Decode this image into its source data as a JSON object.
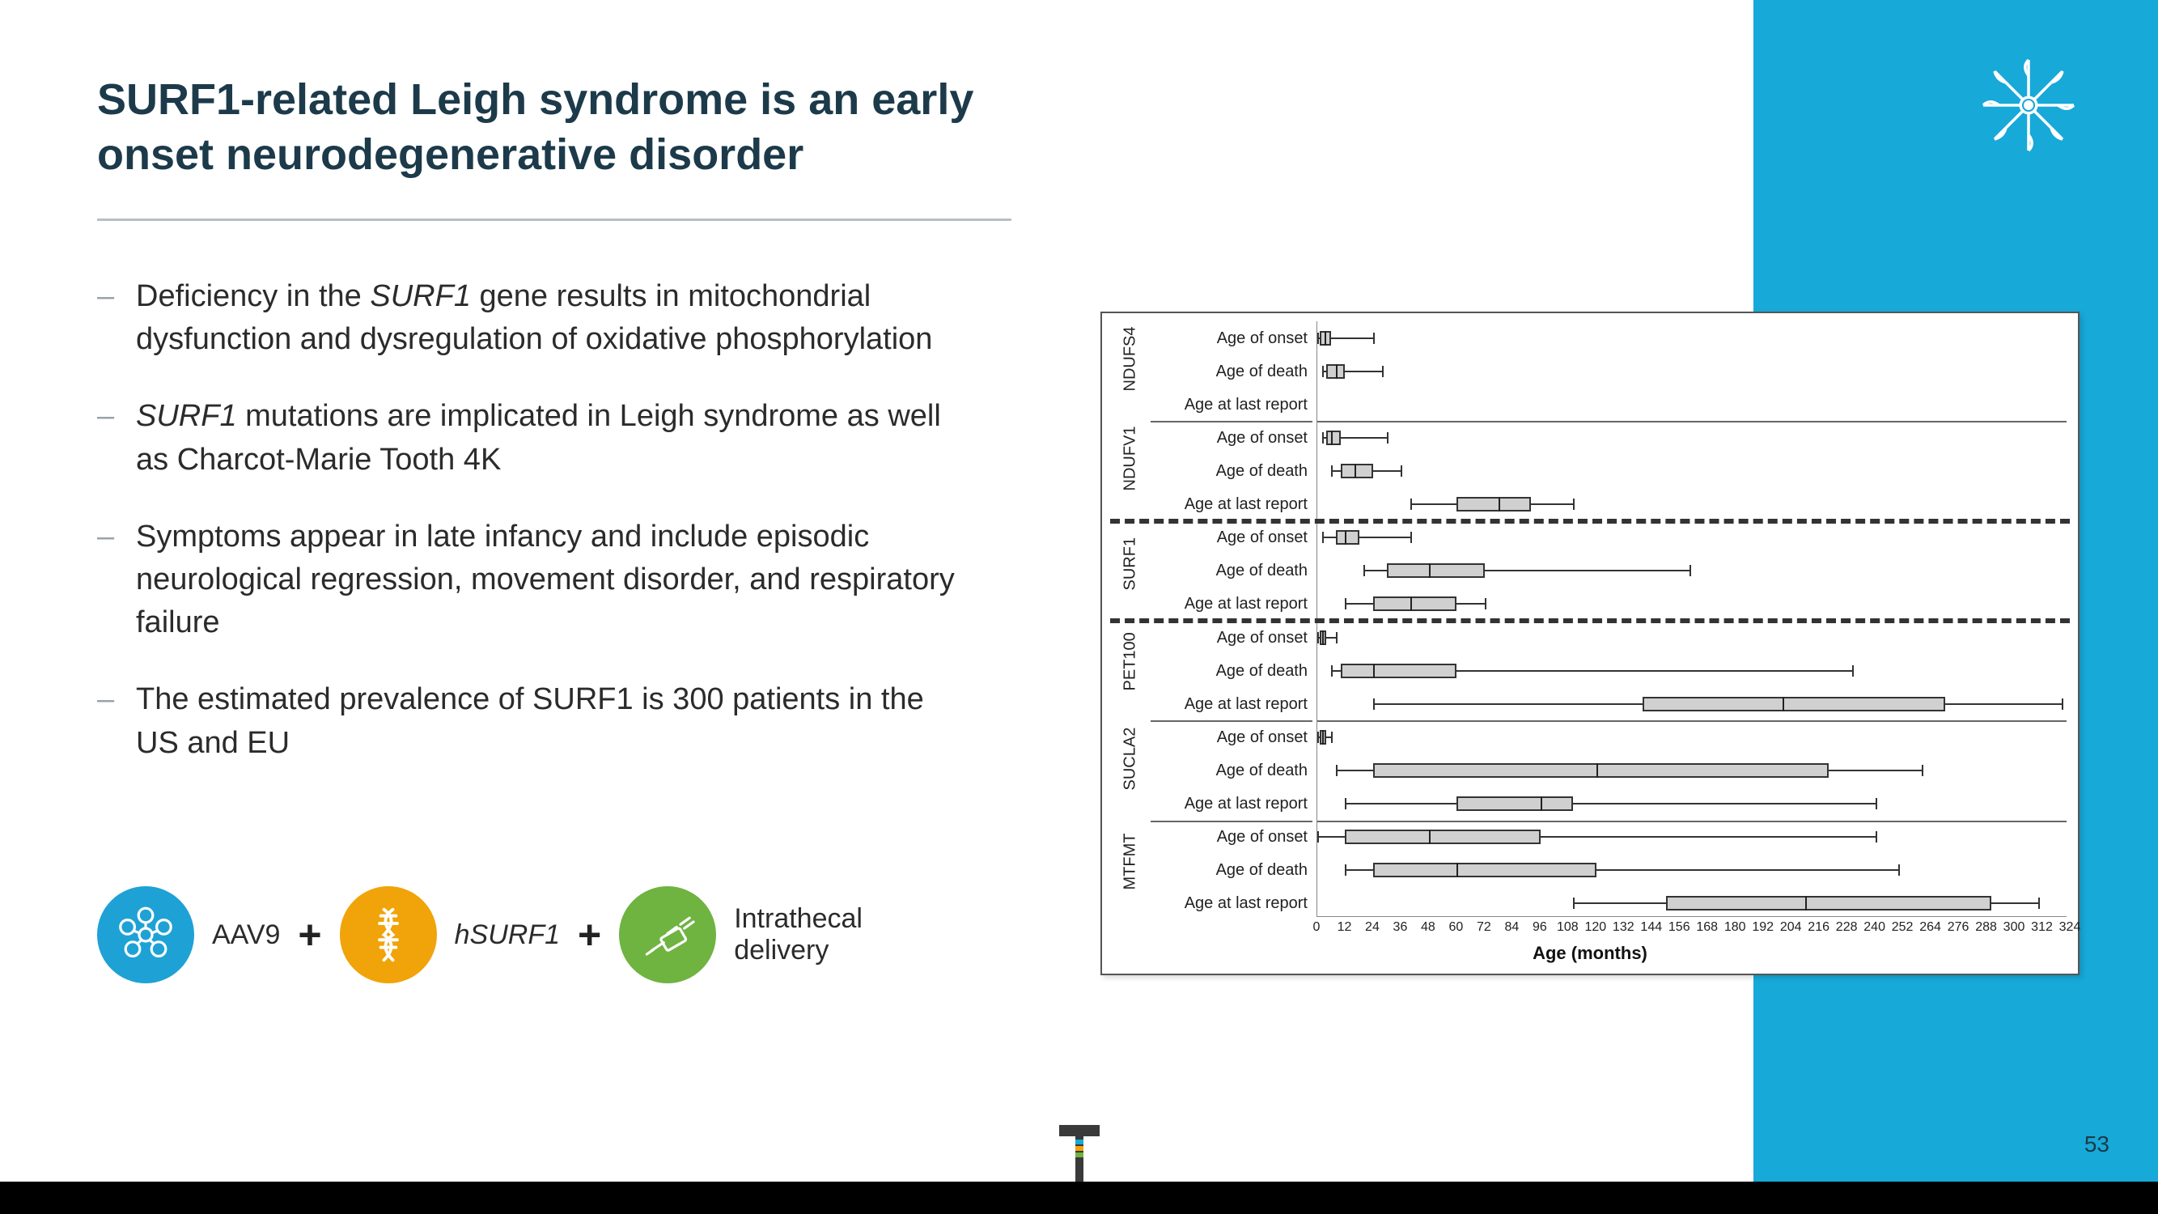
{
  "accent_color": "#17a9d8",
  "title_color": "#1c3a4a",
  "title": "SURF1-related Leigh syndrome is an early onset neurodegenerative disorder",
  "bullets": [
    {
      "pre": "Deficiency in the ",
      "em": "SURF1",
      "post": " gene results in mitochondrial dysfunction and dysregulation of oxidative phosphorylation"
    },
    {
      "pre": "",
      "em": "SURF1",
      "post": " mutations are implicated in Leigh syndrome as well as Charcot-Marie Tooth 4K"
    },
    {
      "pre": "Symptoms appear in late infancy and include episodic neurological regression, movement disorder, and respiratory failure",
      "em": "",
      "post": ""
    },
    {
      "pre": "The estimated prevalence of SURF1 is 300 patients in the US and EU",
      "em": "",
      "post": ""
    }
  ],
  "therapy": {
    "c1_color": "#1ea2d6",
    "c1_label": "AAV9",
    "c2_color": "#f0a409",
    "c2_label": "hSURF1",
    "c3_color": "#6fb341",
    "c3_line1": "Intrathecal",
    "c3_line2": "delivery",
    "plus": "+"
  },
  "chart": {
    "xlabel": "Age (months)",
    "xmin": 0,
    "xmax": 324,
    "xtick_step": 12,
    "row_labels": [
      "Age of onset",
      "Age of death",
      "Age at last report"
    ],
    "box_fill": "#d0d0d0",
    "box_border": "#333333",
    "highlight_dash_color": "#333333",
    "genes": [
      {
        "name": "NDUFS4",
        "highlight": false,
        "rows": [
          {
            "min": 0,
            "q1": 1,
            "med": 3,
            "q3": 6,
            "max": 24
          },
          {
            "min": 2,
            "q1": 4,
            "med": 8,
            "q3": 12,
            "max": 28
          },
          null
        ]
      },
      {
        "name": "NDUFV1",
        "highlight": false,
        "rows": [
          {
            "min": 2,
            "q1": 4,
            "med": 6,
            "q3": 10,
            "max": 30
          },
          {
            "min": 6,
            "q1": 10,
            "med": 16,
            "q3": 24,
            "max": 36
          },
          {
            "min": 40,
            "q1": 60,
            "med": 78,
            "q3": 92,
            "max": 110
          }
        ]
      },
      {
        "name": "SURF1",
        "highlight": true,
        "rows": [
          {
            "min": 2,
            "q1": 8,
            "med": 12,
            "q3": 18,
            "max": 40
          },
          {
            "min": 20,
            "q1": 30,
            "med": 48,
            "q3": 72,
            "max": 160
          },
          {
            "min": 12,
            "q1": 24,
            "med": 40,
            "q3": 60,
            "max": 72
          }
        ]
      },
      {
        "name": "PET100",
        "highlight": false,
        "rows": [
          {
            "min": 0,
            "q1": 1,
            "med": 2,
            "q3": 4,
            "max": 8
          },
          {
            "min": 6,
            "q1": 10,
            "med": 24,
            "q3": 60,
            "max": 230
          },
          {
            "min": 24,
            "q1": 140,
            "med": 200,
            "q3": 270,
            "max": 320
          }
        ]
      },
      {
        "name": "SUCLA2",
        "highlight": false,
        "rows": [
          {
            "min": 0,
            "q1": 1,
            "med": 2,
            "q3": 4,
            "max": 6
          },
          {
            "min": 8,
            "q1": 24,
            "med": 120,
            "q3": 220,
            "max": 260
          },
          {
            "min": 12,
            "q1": 60,
            "med": 96,
            "q3": 110,
            "max": 240
          }
        ]
      },
      {
        "name": "MTFMT",
        "highlight": false,
        "rows": [
          {
            "min": 0,
            "q1": 12,
            "med": 48,
            "q3": 96,
            "max": 240
          },
          {
            "min": 12,
            "q1": 24,
            "med": 60,
            "q3": 120,
            "max": 250
          },
          {
            "min": 110,
            "q1": 150,
            "med": 210,
            "q3": 290,
            "max": 310
          }
        ]
      }
    ]
  },
  "page_number": "53"
}
